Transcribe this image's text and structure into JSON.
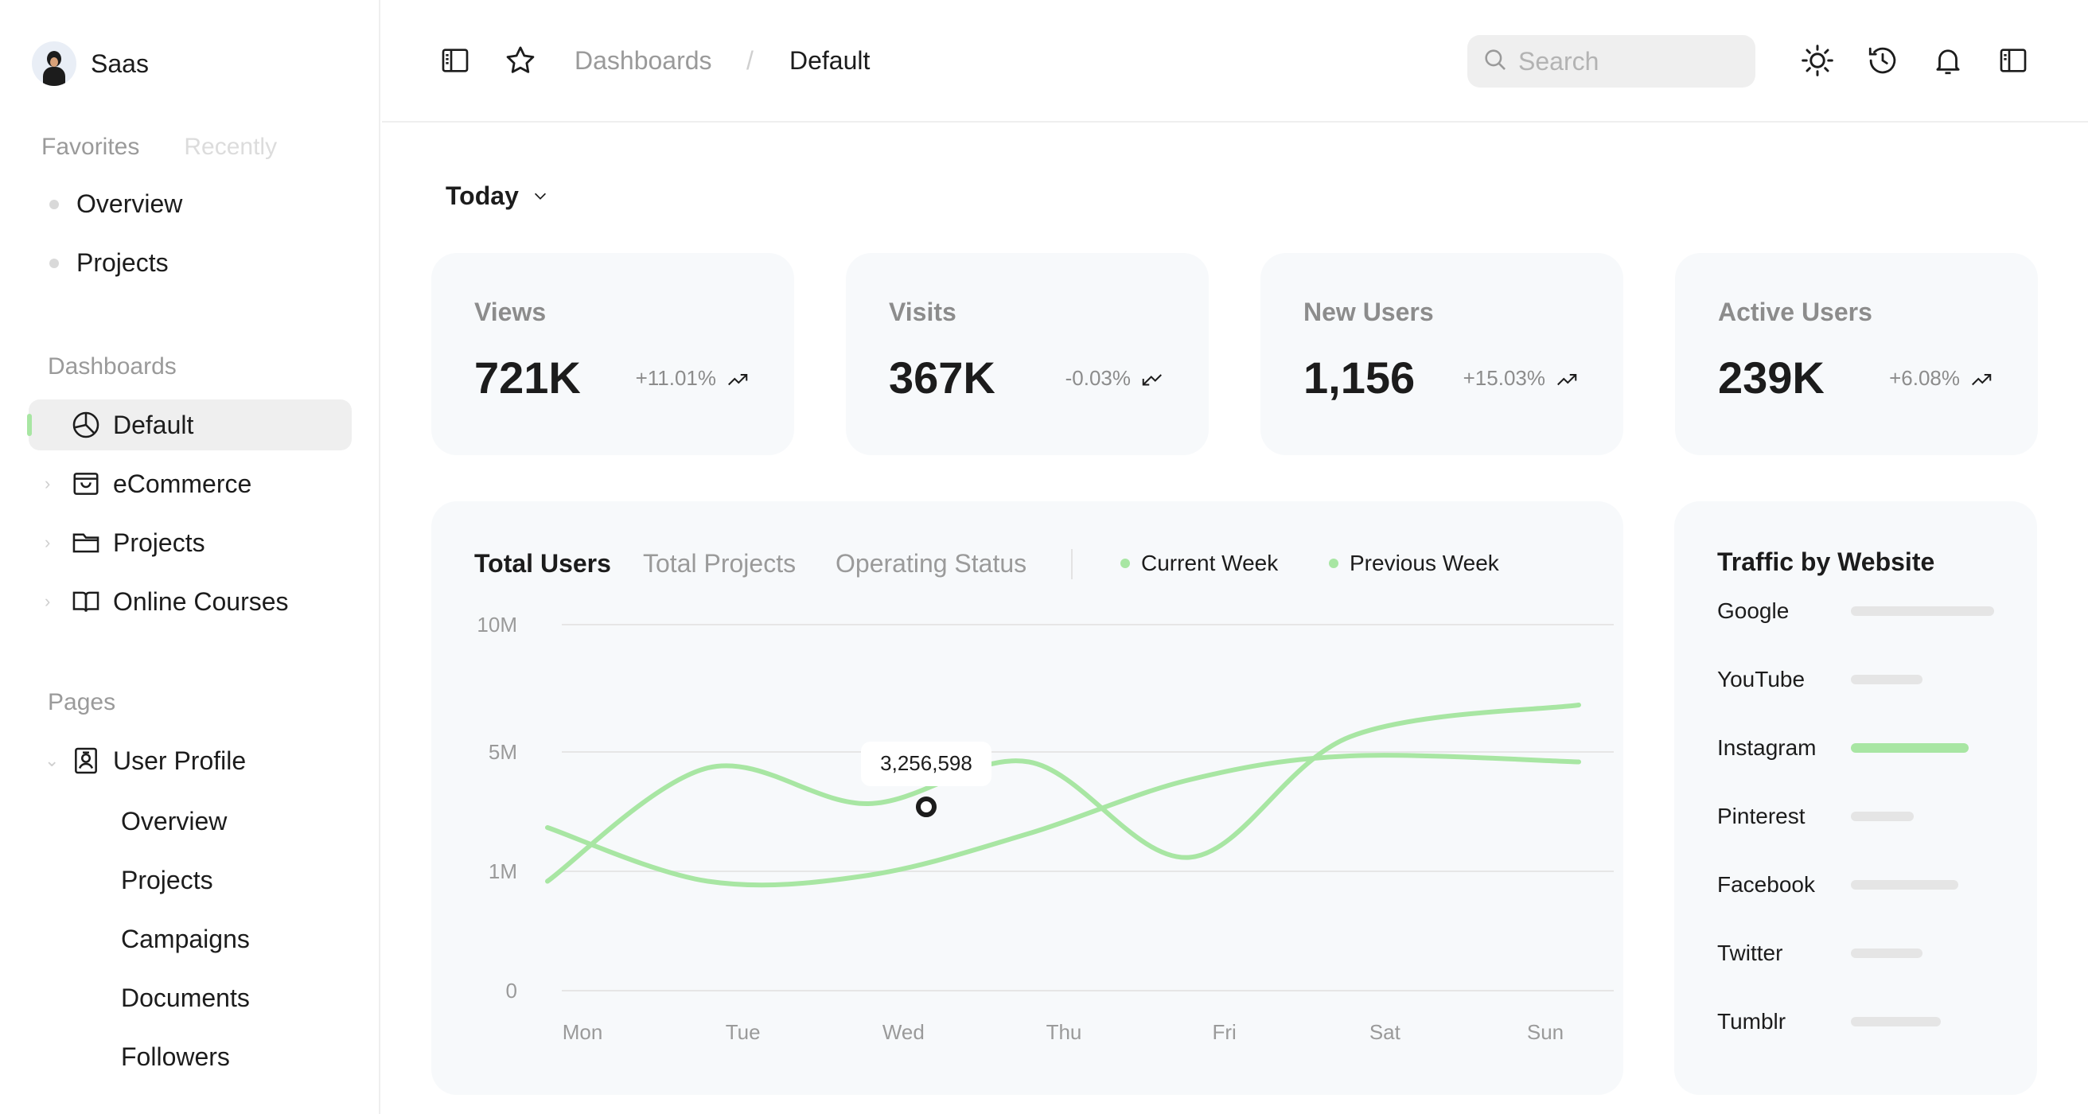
{
  "brand": {
    "name": "Saas"
  },
  "sidebar": {
    "fav_tabs": [
      "Favorites",
      "Recently"
    ],
    "favorites": [
      "Overview",
      "Projects"
    ],
    "dashboards_label": "Dashboards",
    "dashboards": [
      {
        "label": "Default",
        "icon": "pie-chart-icon",
        "active": true
      },
      {
        "label": "eCommerce",
        "icon": "shopping-bag-icon",
        "active": false
      },
      {
        "label": "Projects",
        "icon": "folder-icon",
        "active": false
      },
      {
        "label": "Online Courses",
        "icon": "book-open-icon",
        "active": false
      }
    ],
    "pages_label": "Pages",
    "user_profile": {
      "label": "User Profile",
      "icon": "identification-badge-icon"
    },
    "user_profile_items": [
      "Overview",
      "Projects",
      "Campaigns",
      "Documents",
      "Followers"
    ]
  },
  "header": {
    "breadcrumb": [
      "Dashboards",
      "Default"
    ],
    "breadcrumb_sep": "/",
    "search_placeholder": "Search"
  },
  "main": {
    "range_label": "Today",
    "stats": [
      {
        "label": "Views",
        "value": "721K",
        "change": "+11.01%",
        "trend": "up"
      },
      {
        "label": "Visits",
        "value": "367K",
        "change": "-0.03%",
        "trend": "down"
      },
      {
        "label": "New Users",
        "value": "1,156",
        "change": "+15.03%",
        "trend": "up"
      },
      {
        "label": "Active Users",
        "value": "239K",
        "change": "+6.08%",
        "trend": "up"
      }
    ],
    "chart_tabs": [
      "Total Users",
      "Total Projects",
      "Operating Status"
    ],
    "traffic": {
      "title": "Traffic by Website",
      "sites": [
        {
          "name": "Google",
          "level": 1.0,
          "color": "#e5e5e5"
        },
        {
          "name": "YouTube",
          "level": 0.5,
          "color": "#e5e5e5"
        },
        {
          "name": "Instagram",
          "level": 0.82,
          "color": "#a8e6a3"
        },
        {
          "name": "Pinterest",
          "level": 0.44,
          "color": "#e5e5e5"
        },
        {
          "name": "Facebook",
          "level": 0.75,
          "color": "#e5e5e5"
        },
        {
          "name": "Twitter",
          "level": 0.5,
          "color": "#e5e5e5"
        },
        {
          "name": "Tumblr",
          "level": 0.63,
          "color": "#e5e5e5"
        }
      ]
    }
  },
  "chart_data": {
    "type": "line",
    "categories": [
      "Mon",
      "Tue",
      "Wed",
      "Thu",
      "Fri",
      "Sat",
      "Sun"
    ],
    "y_ticks": [
      "10M",
      "5M",
      "1M",
      "0"
    ],
    "series": [
      {
        "name": "Current Week",
        "values_pos": [
          0.95,
          1.9,
          1.6,
          1.95,
          1.15,
          2.15,
          2.4
        ],
        "color": "#a8e6a3"
      },
      {
        "name": "Previous Week",
        "values_pos": [
          1.4,
          0.95,
          1.0,
          1.35,
          1.8,
          2.0,
          1.95
        ],
        "color": "#a8e6a3"
      }
    ],
    "tooltip": {
      "label": "3,256,598",
      "category": "Wed"
    },
    "legend": "top"
  },
  "colors": {
    "accent": "#a8e6a3",
    "card": "#f7f9fb",
    "muted": "#9a9a9a"
  }
}
